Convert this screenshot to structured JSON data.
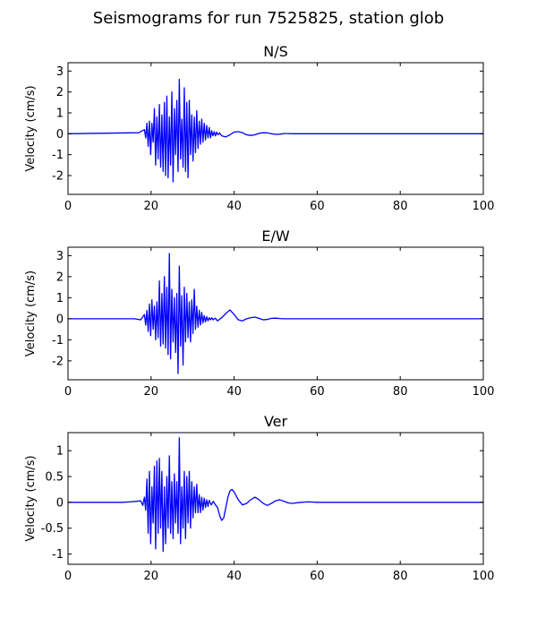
{
  "figure": {
    "suptitle": "Seismograms for run 7525825, station glob"
  },
  "chart_data": [
    {
      "type": "line",
      "title": "N/S",
      "xlabel": "",
      "ylabel": "Velocity (cm/s)",
      "xlim": [
        0,
        100
      ],
      "ylim": [
        -2.9,
        3.4
      ],
      "xticks": [
        0,
        20,
        40,
        60,
        80,
        100
      ],
      "yticks": [
        -2,
        -1,
        0,
        1,
        2,
        3
      ],
      "line_color": "#0000ff",
      "series": [
        {
          "x": [
            0,
            17,
            18.4,
            18.7,
            19.0,
            19.3,
            19.6,
            19.9,
            20.2,
            20.5,
            20.8,
            21.1,
            21.4,
            21.7,
            22.0,
            22.3,
            22.6,
            22.9,
            23.2,
            23.5,
            23.8,
            24.1,
            24.4,
            24.7,
            25.0,
            25.3,
            25.6,
            25.9,
            26.2,
            26.5,
            26.8,
            27.1,
            27.4,
            27.7,
            28.0,
            28.3,
            28.6,
            28.9,
            29.2,
            29.5,
            29.8,
            30.1,
            30.4,
            30.7,
            31.0,
            31.3,
            31.6,
            31.9,
            32.2,
            32.5,
            32.8,
            33.1,
            33.4,
            33.7,
            34.0,
            34.3,
            34.6,
            34.9,
            35.2,
            35.5,
            35.8,
            36.1,
            36.5,
            37.0,
            38.0,
            39.0,
            40.0,
            41.0,
            42.0,
            43.0,
            44.0,
            45.0,
            46.0,
            47.0,
            48.0,
            49.0,
            50.0,
            51.0,
            52.0,
            53.0,
            54.0,
            55.0,
            56.0,
            58.0,
            60.0,
            100
          ],
          "y": [
            0,
            0.05,
            0.2,
            -0.2,
            0.5,
            -0.6,
            0.6,
            -1.0,
            0.5,
            -0.4,
            1.2,
            -1.5,
            0.8,
            -1.2,
            1.4,
            -1.6,
            0.9,
            -1.8,
            1.5,
            -2.0,
            1.8,
            -2.1,
            0.8,
            -1.5,
            2.0,
            -2.3,
            1.2,
            -1.0,
            1.6,
            -1.8,
            2.6,
            -1.2,
            0.7,
            -1.6,
            2.2,
            -1.8,
            1.5,
            -2.1,
            1.6,
            -1.0,
            0.9,
            -1.3,
            0.8,
            -0.9,
            1.1,
            -0.7,
            0.6,
            -0.5,
            0.7,
            -0.4,
            0.5,
            -0.3,
            0.4,
            -0.2,
            0.3,
            -0.2,
            0.15,
            -0.1,
            0.1,
            -0.1,
            0.08,
            -0.05,
            0.04,
            -0.1,
            -0.15,
            -0.05,
            0.08,
            0.1,
            0.05,
            -0.05,
            -0.08,
            -0.05,
            0.02,
            0.05,
            0.04,
            0,
            -0.03,
            -0.02,
            0.01,
            0.01,
            0,
            0,
            0,
            0,
            0,
            0
          ]
        }
      ]
    },
    {
      "type": "line",
      "title": "E/W",
      "xlabel": "",
      "ylabel": "Velocity (cm/s)",
      "xlim": [
        0,
        100
      ],
      "ylim": [
        -2.9,
        3.4
      ],
      "xticks": [
        0,
        20,
        40,
        60,
        80,
        100
      ],
      "yticks": [
        -2,
        -1,
        0,
        1,
        2,
        3
      ],
      "line_color": "#0000ff",
      "series": [
        {
          "x": [
            0,
            16,
            17.5,
            18.4,
            18.7,
            19.0,
            19.3,
            19.6,
            19.9,
            20.2,
            20.5,
            20.8,
            21.1,
            21.4,
            21.7,
            22.0,
            22.3,
            22.6,
            22.9,
            23.2,
            23.5,
            23.8,
            24.1,
            24.4,
            24.7,
            25.0,
            25.3,
            25.6,
            25.9,
            26.2,
            26.5,
            26.8,
            27.1,
            27.4,
            27.7,
            28.0,
            28.3,
            28.6,
            28.9,
            29.2,
            29.5,
            29.8,
            30.1,
            30.4,
            30.7,
            31.0,
            31.3,
            31.6,
            31.9,
            32.2,
            32.5,
            32.8,
            33.1,
            33.4,
            33.7,
            34.0,
            34.3,
            34.6,
            34.9,
            35.2,
            35.5,
            36.0,
            37.0,
            38.0,
            39.0,
            40.0,
            41.0,
            42.0,
            43.0,
            44.0,
            45.0,
            46.0,
            47.0,
            48.0,
            49.0,
            50.0,
            51.0,
            52.0,
            53.0,
            54.0,
            55.0,
            56.0,
            58.0,
            60.0,
            100
          ],
          "y": [
            0,
            0,
            -0.05,
            0.2,
            -0.3,
            0.4,
            -0.6,
            0.7,
            -0.8,
            0.9,
            -0.5,
            0.6,
            -1.0,
            0.8,
            -0.9,
            1.8,
            -1.3,
            1.2,
            -1.2,
            2.0,
            -1.4,
            1.5,
            -1.7,
            3.1,
            -1.9,
            1.4,
            -1.1,
            1.0,
            -1.6,
            1.2,
            -2.6,
            2.5,
            -1.3,
            1.1,
            -2.2,
            1.5,
            -1.1,
            1.2,
            -0.9,
            0.8,
            -1.1,
            0.9,
            -0.7,
            1.4,
            -0.5,
            0.6,
            -0.4,
            0.4,
            -0.3,
            0.3,
            -0.2,
            0.15,
            -0.15,
            0.1,
            -0.1,
            0.05,
            -0.05,
            0.05,
            -0.05,
            0,
            0.02,
            -0.1,
            0.05,
            0.25,
            0.42,
            0.2,
            -0.05,
            -0.1,
            0,
            0.05,
            0.08,
            0.02,
            -0.05,
            -0.03,
            0.02,
            0.03,
            0.01,
            0,
            0,
            0,
            0,
            0,
            0,
            0,
            0
          ]
        }
      ]
    },
    {
      "type": "line",
      "title": "Ver",
      "xlabel": "",
      "ylabel": "Velocity (cm/s)",
      "xlim": [
        0,
        100
      ],
      "ylim": [
        -1.2,
        1.35
      ],
      "xticks": [
        0,
        20,
        40,
        60,
        80,
        100
      ],
      "yticks": [
        -1.0,
        -0.5,
        0.0,
        0.5,
        1.0
      ],
      "line_color": "#0000ff",
      "series": [
        {
          "x": [
            0,
            13,
            15,
            16.5,
            17.5,
            18.0,
            18.4,
            18.7,
            19.0,
            19.3,
            19.6,
            19.9,
            20.2,
            20.5,
            20.8,
            21.1,
            21.4,
            21.7,
            22.0,
            22.3,
            22.6,
            22.9,
            23.2,
            23.5,
            23.8,
            24.1,
            24.4,
            24.7,
            25.0,
            25.3,
            25.6,
            25.9,
            26.2,
            26.5,
            26.8,
            27.1,
            27.4,
            27.7,
            28.0,
            28.3,
            28.6,
            28.9,
            29.2,
            29.5,
            29.8,
            30.1,
            30.4,
            30.7,
            31.0,
            31.3,
            31.6,
            31.9,
            32.2,
            32.5,
            32.8,
            33.1,
            33.4,
            33.7,
            34.0,
            34.5,
            35.0,
            35.5,
            36.0,
            36.5,
            37.0,
            37.5,
            38.0,
            38.5,
            39.0,
            39.5,
            40.0,
            41.0,
            42.0,
            43.0,
            44.0,
            45.0,
            46.0,
            47.0,
            48.0,
            49.0,
            50.0,
            51.0,
            52.0,
            53.0,
            54.0,
            56.0,
            58.0,
            60.0,
            100
          ],
          "y": [
            0,
            0,
            0.01,
            0.02,
            0.03,
            -0.06,
            0.1,
            -0.15,
            0.45,
            -0.6,
            0.6,
            -0.8,
            0.3,
            -0.4,
            0.7,
            -0.9,
            0.8,
            -0.6,
            0.85,
            -0.5,
            0.6,
            -0.95,
            0.3,
            -0.8,
            0.5,
            -0.5,
            0.9,
            -0.6,
            0.4,
            -0.7,
            0.55,
            -0.4,
            0.4,
            -0.6,
            1.25,
            -0.8,
            0.3,
            -0.5,
            0.6,
            -0.7,
            0.5,
            -0.4,
            0.6,
            -0.5,
            0.4,
            -0.3,
            0.3,
            -0.2,
            0.35,
            -0.2,
            0.15,
            -0.2,
            0.1,
            -0.15,
            0.08,
            -0.1,
            0.05,
            -0.08,
            0.04,
            -0.05,
            0.02,
            -0.05,
            -0.1,
            -0.25,
            -0.35,
            -0.3,
            -0.1,
            0.1,
            0.22,
            0.25,
            0.2,
            0.05,
            -0.05,
            -0.02,
            0.05,
            0.1,
            0.05,
            -0.02,
            -0.06,
            -0.02,
            0.03,
            0.05,
            0.02,
            -0.01,
            -0.02,
            0,
            0.01,
            0,
            0
          ]
        }
      ]
    }
  ]
}
